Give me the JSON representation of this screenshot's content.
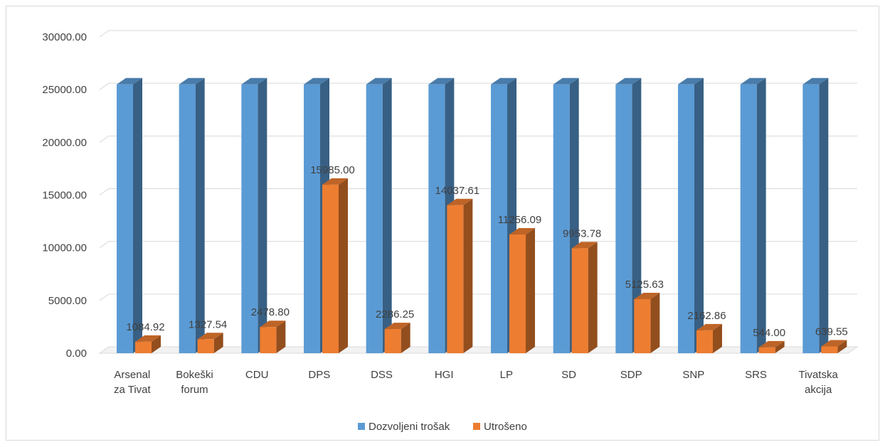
{
  "chart_data": {
    "type": "bar",
    "title": "",
    "xlabel": "",
    "ylabel": "",
    "ylim": [
      0,
      30000
    ],
    "yticks": [
      "0.00",
      "5000.00",
      "10000.00",
      "15000.00",
      "20000.00",
      "25000.00",
      "30000.00"
    ],
    "grid": true,
    "legend_position": "bottom",
    "categories": [
      [
        "Arsenal",
        "za Tivat"
      ],
      [
        "Bokeški",
        "forum"
      ],
      [
        "CDU"
      ],
      [
        "DPS"
      ],
      [
        "DSS"
      ],
      [
        "HGI"
      ],
      [
        "LP"
      ],
      [
        "SD"
      ],
      [
        "SDP"
      ],
      [
        "SNP"
      ],
      [
        "SRS"
      ],
      [
        "Tivatska",
        "akcija"
      ]
    ],
    "series": [
      {
        "name": "Dozvoljeni trošak",
        "color": "#5B9BD5",
        "values": [
          25500,
          25500,
          25500,
          25500,
          25500,
          25500,
          25500,
          25500,
          25500,
          25500,
          25500,
          25500
        ]
      },
      {
        "name": "Utrošeno",
        "color": "#ED7D31",
        "values": [
          1084.92,
          1327.54,
          2478.8,
          15985.0,
          2286.25,
          14037.61,
          11256.09,
          9953.78,
          5125.63,
          2162.86,
          544.0,
          639.55
        ],
        "data_labels": [
          "1084.92",
          "1327.54",
          "2478.80",
          "15985.00",
          "2286.25",
          "14037.61",
          "11256.09",
          "9953.78",
          "5125.63",
          "2162.86",
          "544.00",
          "639.55"
        ]
      }
    ]
  }
}
